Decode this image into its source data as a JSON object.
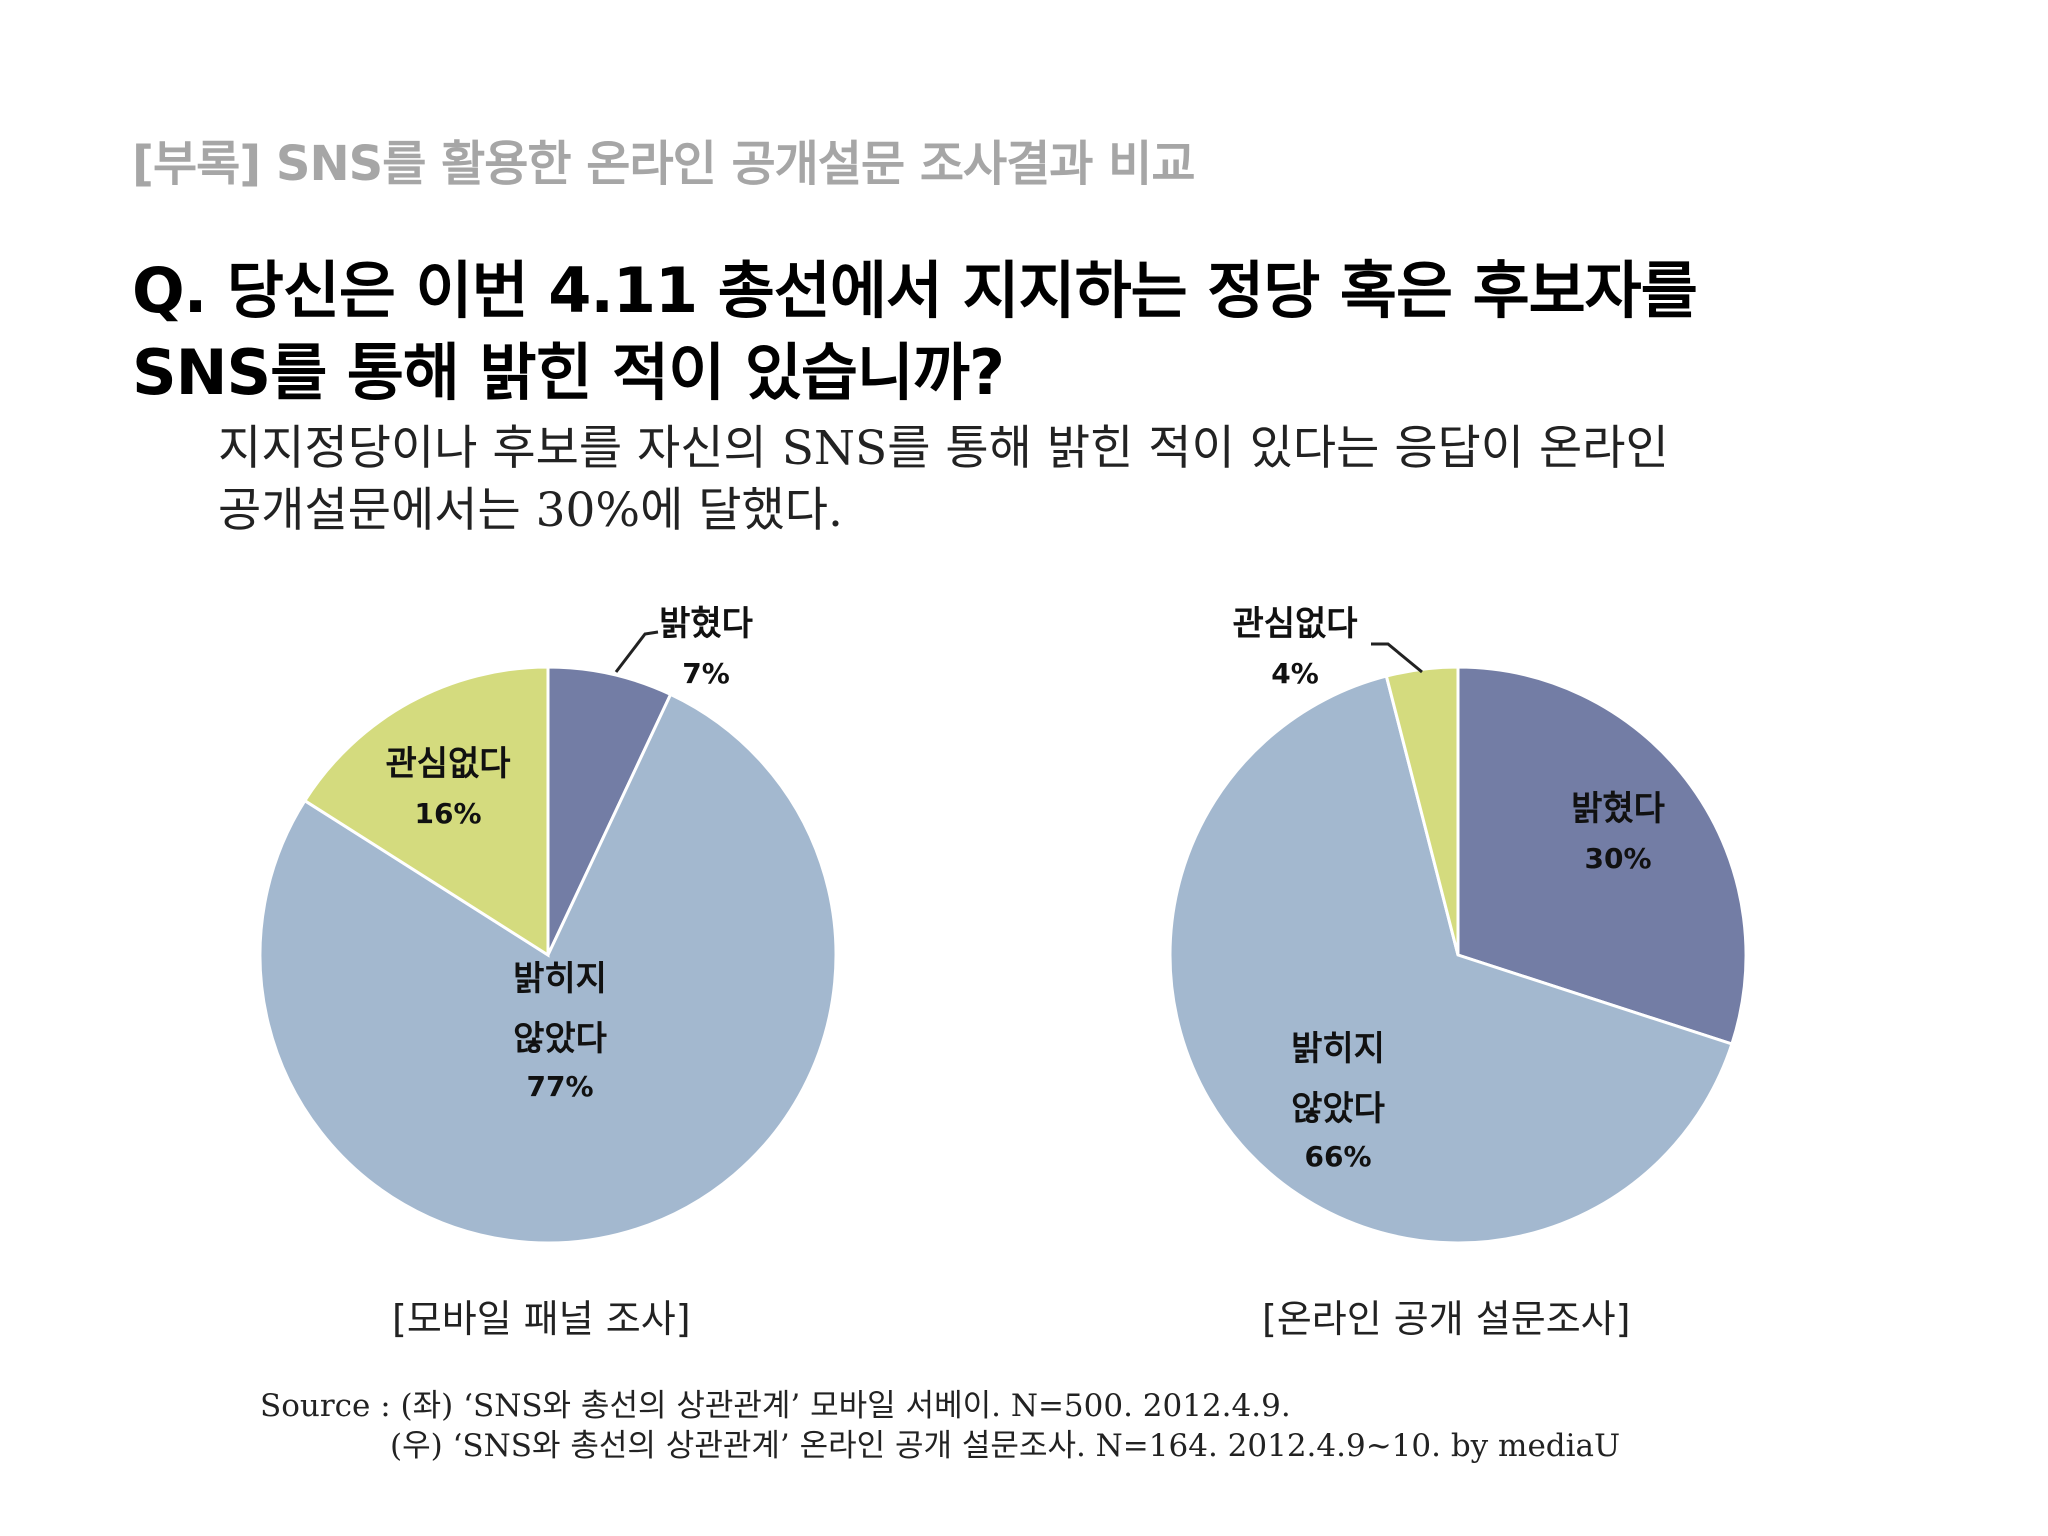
{
  "header": {
    "tag": "[부록] SNS를 활용한 온라인 공개설문 조사결과 비교"
  },
  "question": {
    "line1": "Q. 당신은 이번 4.11 총선에서 지지하는 정당 혹은 후보자를",
    "line2": "SNS를 통해 밝힌 적이 있습니까?"
  },
  "answer": {
    "line1": "지지정당이나 후보를 자신의 SNS를 통해 밝힌 적이 있다는 응답이 온라인",
    "line2": "공개설문에서는 30%에 달했다."
  },
  "colors": {
    "revealed": "#737da5",
    "not_revealed": "#a3b8cf",
    "no_interest": "#d4db7e"
  },
  "chart_data": [
    {
      "type": "pie",
      "caption": "[모바일 패널 조사]",
      "slices": [
        {
          "label": "밝혔다",
          "value": 7,
          "pct": "7%",
          "color": "#737da5"
        },
        {
          "label": "밝히지 않았다",
          "value": 77,
          "pct": "77%",
          "color": "#a3b8cf"
        },
        {
          "label": "관심없다",
          "value": 16,
          "pct": "16%",
          "color": "#d4db7e"
        }
      ]
    },
    {
      "type": "pie",
      "caption": "[온라인 공개 설문조사]",
      "slices": [
        {
          "label": "밝혔다",
          "value": 30,
          "pct": "30%",
          "color": "#737da5"
        },
        {
          "label": "밝히지 않았다",
          "value": 66,
          "pct": "66%",
          "color": "#a3b8cf"
        },
        {
          "label": "관심없다",
          "value": 4,
          "pct": "4%",
          "color": "#d4db7e"
        }
      ]
    }
  ],
  "source": {
    "line1": "Source : (좌) ‘SNS와 총선의 상관관계’ 모바일 서베이. N=500. 2012.4.9.",
    "line2": "(우) ‘SNS와 총선의 상관관계’ 온라인 공개 설문조사. N=164. 2012.4.9~10.   by mediaU"
  }
}
